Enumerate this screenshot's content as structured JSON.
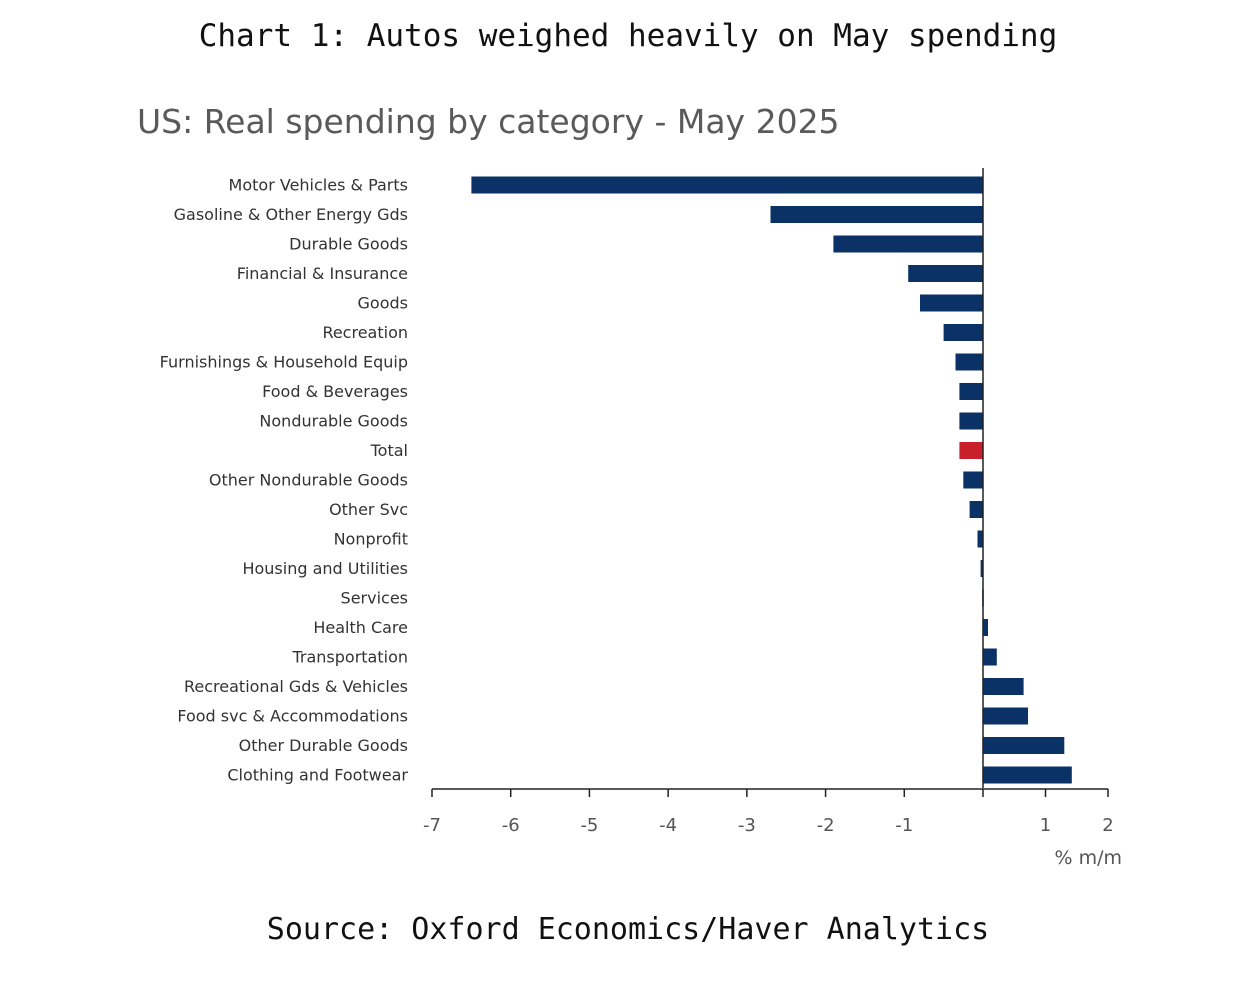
{
  "header": {
    "title": "Chart 1: Autos weighed heavily on May spending"
  },
  "footer": {
    "source": "Source: Oxford Economics/Haver Analytics"
  },
  "chart_data": {
    "type": "bar",
    "orientation": "horizontal",
    "title": "US: Real spending by category - May 2025",
    "xlabel": "% m/m",
    "ylabel": "",
    "xlim": [
      -7,
      2
    ],
    "xticks": [
      "-7",
      "-6",
      "-5",
      "-4",
      "-3",
      "-2",
      "-1",
      "1",
      "2"
    ],
    "xtick_values": [
      -7,
      -6,
      -5,
      -4,
      -3,
      -2,
      -1,
      1,
      2
    ],
    "categories": [
      "Motor Vehicles & Parts",
      "Gasoline & Other Energy Gds",
      "Durable Goods",
      "Financial & Insurance",
      "Goods",
      "Recreation",
      "Furnishings & Household Equip",
      "Food & Beverages",
      "Nondurable Goods",
      "Total",
      "Other Nondurable Goods",
      "Other Svc",
      "Nonprofit",
      "Housing and Utilities",
      "Services",
      "Health Care",
      "Transportation",
      "Recreational Gds & Vehicles",
      "Food svc & Accommodations",
      "Other Durable Goods",
      "Clothing and Footwear"
    ],
    "values": [
      -6.5,
      -2.7,
      -1.9,
      -0.95,
      -0.8,
      -0.5,
      -0.35,
      -0.3,
      -0.3,
      -0.3,
      -0.25,
      -0.17,
      -0.07,
      -0.03,
      -0.01,
      0.08,
      0.22,
      0.65,
      0.72,
      1.3,
      1.42
    ],
    "highlight": "Total",
    "colors": {
      "bar": "#0b3266",
      "highlight": "#c8202b",
      "axis": "#222222"
    },
    "grid": false,
    "legend": "none"
  }
}
